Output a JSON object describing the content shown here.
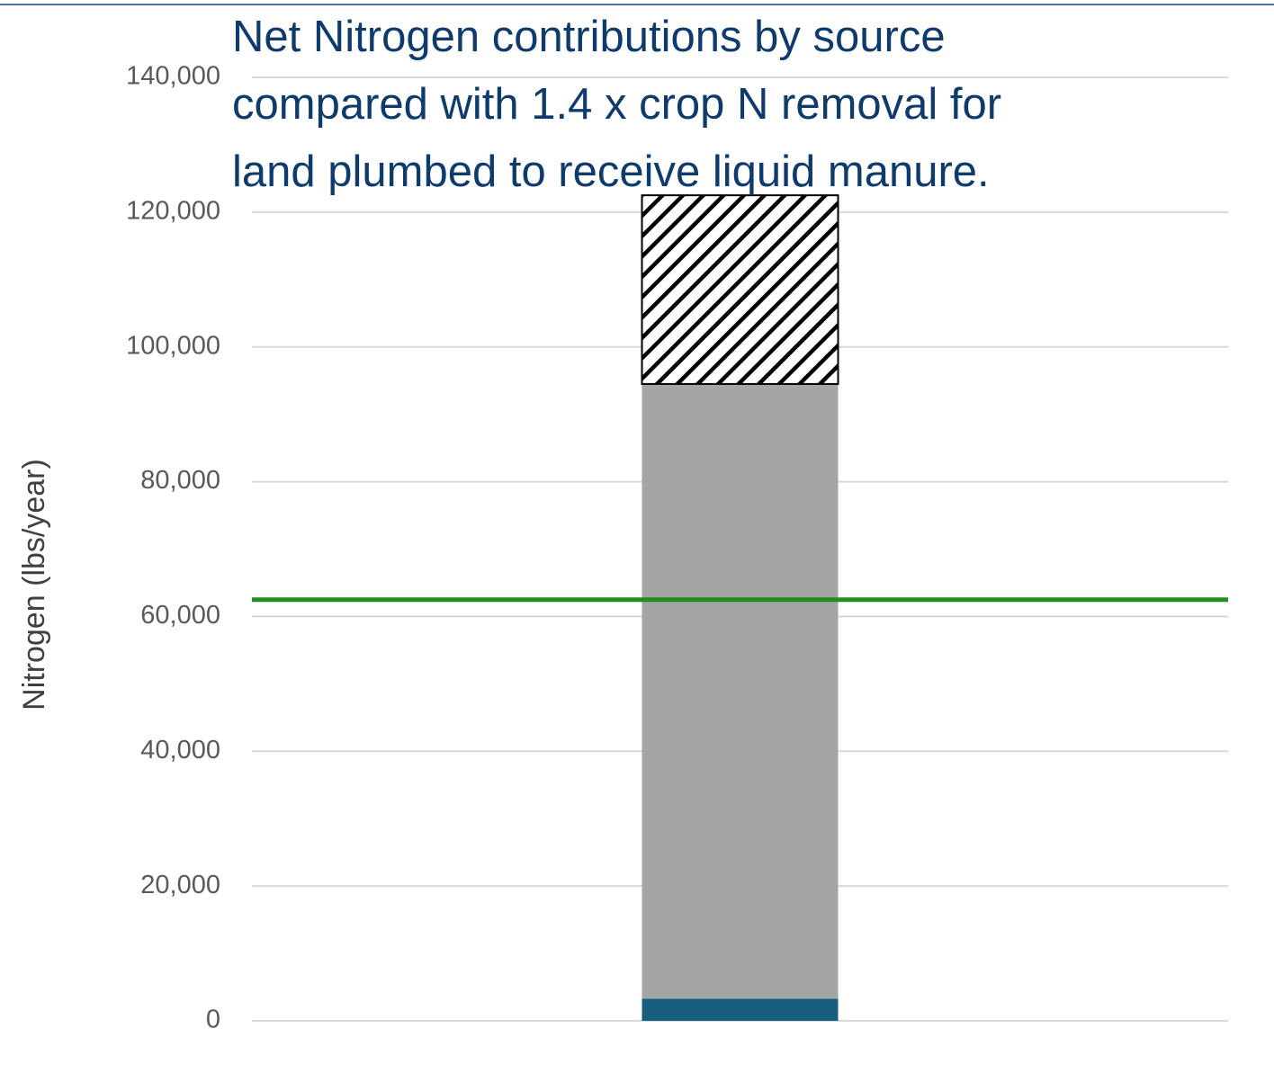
{
  "chart_data": {
    "type": "stacked_bar",
    "title": "Net Nitrogen contributions by source\ncompared with 1.4 x crop N removal for\nland plumbed to receive liquid manure.",
    "ylabel": "Nitrogen (lbs/year)",
    "categories": [
      null
    ],
    "series": [
      {
        "color": "#175e7e",
        "values": [
          3300
        ]
      },
      {
        "color": "#a5a5a5",
        "values": [
          91200
        ]
      },
      {
        "color": "#000000",
        "pattern": "hatch",
        "values": [
          28000
        ]
      }
    ],
    "hlines": [
      {
        "value": 62500,
        "color": "#228b22"
      }
    ],
    "ylim": [
      0,
      140000
    ],
    "yticks": [
      0,
      {
        "value": 20000,
        "label": "20,000"
      },
      {
        "value": 40000,
        "label": "40,000"
      },
      {
        "value": 60000,
        "label": "60,000"
      },
      {
        "value": 80000,
        "label": "80,000"
      },
      {
        "value": 100000,
        "label": "100,000"
      },
      {
        "value": 120000,
        "label": "120,000"
      },
      {
        "value": 140000,
        "label": "140,000"
      }
    ],
    "grid": true
  }
}
